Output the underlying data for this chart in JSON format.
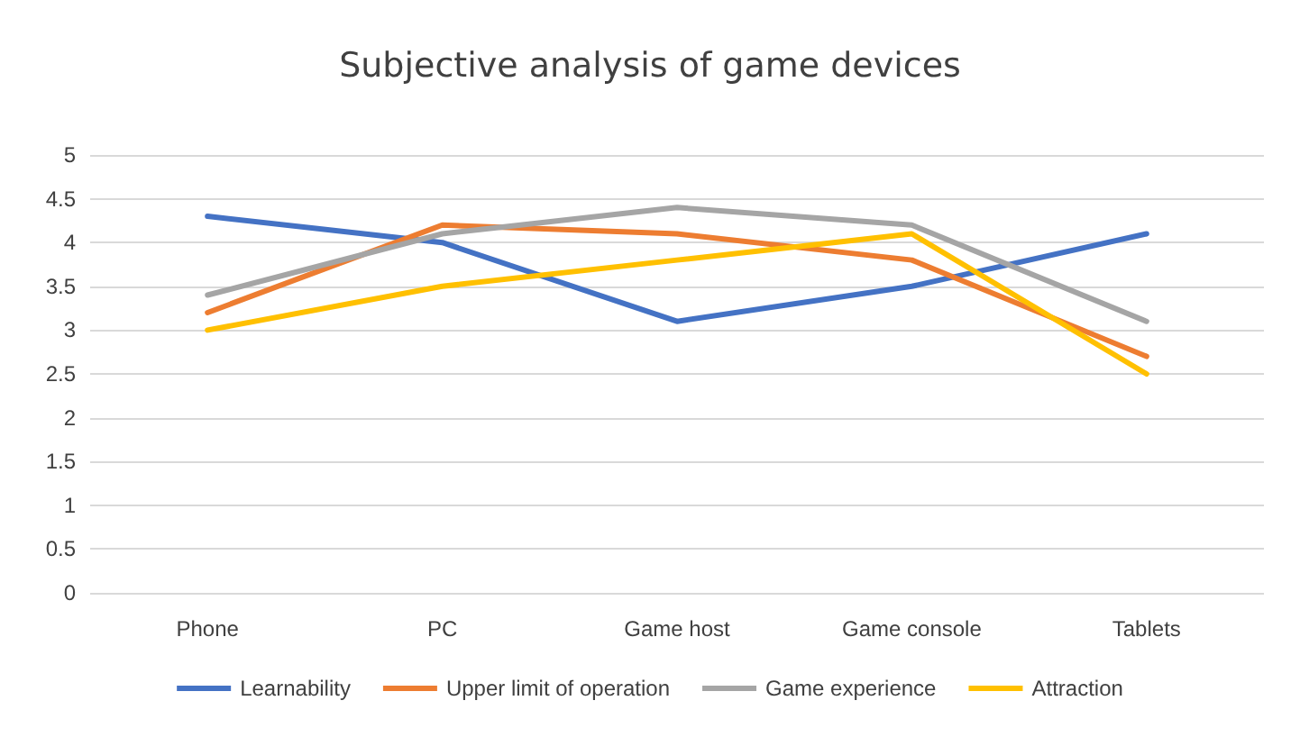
{
  "chart_data": {
    "type": "line",
    "title": "Subjective analysis of game devices",
    "categories": [
      "Phone",
      "PC",
      "Game host",
      "Game console",
      "Tablets"
    ],
    "series": [
      {
        "name": "Learnability",
        "color": "#4472c4",
        "values": [
          4.3,
          4.0,
          3.1,
          3.5,
          4.1
        ]
      },
      {
        "name": "Upper limit of operation",
        "color": "#ed7d31",
        "values": [
          3.2,
          4.2,
          4.1,
          3.8,
          2.7
        ]
      },
      {
        "name": "Game experience",
        "color": "#a5a5a5",
        "values": [
          3.4,
          4.1,
          4.4,
          4.2,
          3.1
        ]
      },
      {
        "name": "Attraction",
        "color": "#ffc000",
        "values": [
          3.0,
          3.5,
          3.8,
          4.1,
          2.5
        ]
      }
    ],
    "ylim": [
      0,
      5
    ],
    "yticks": [
      0,
      0.5,
      1,
      1.5,
      2,
      2.5,
      3,
      3.5,
      4,
      4.5,
      5
    ],
    "grid": "y",
    "legend": "bottom",
    "marker": "none",
    "line_style": "solid"
  }
}
